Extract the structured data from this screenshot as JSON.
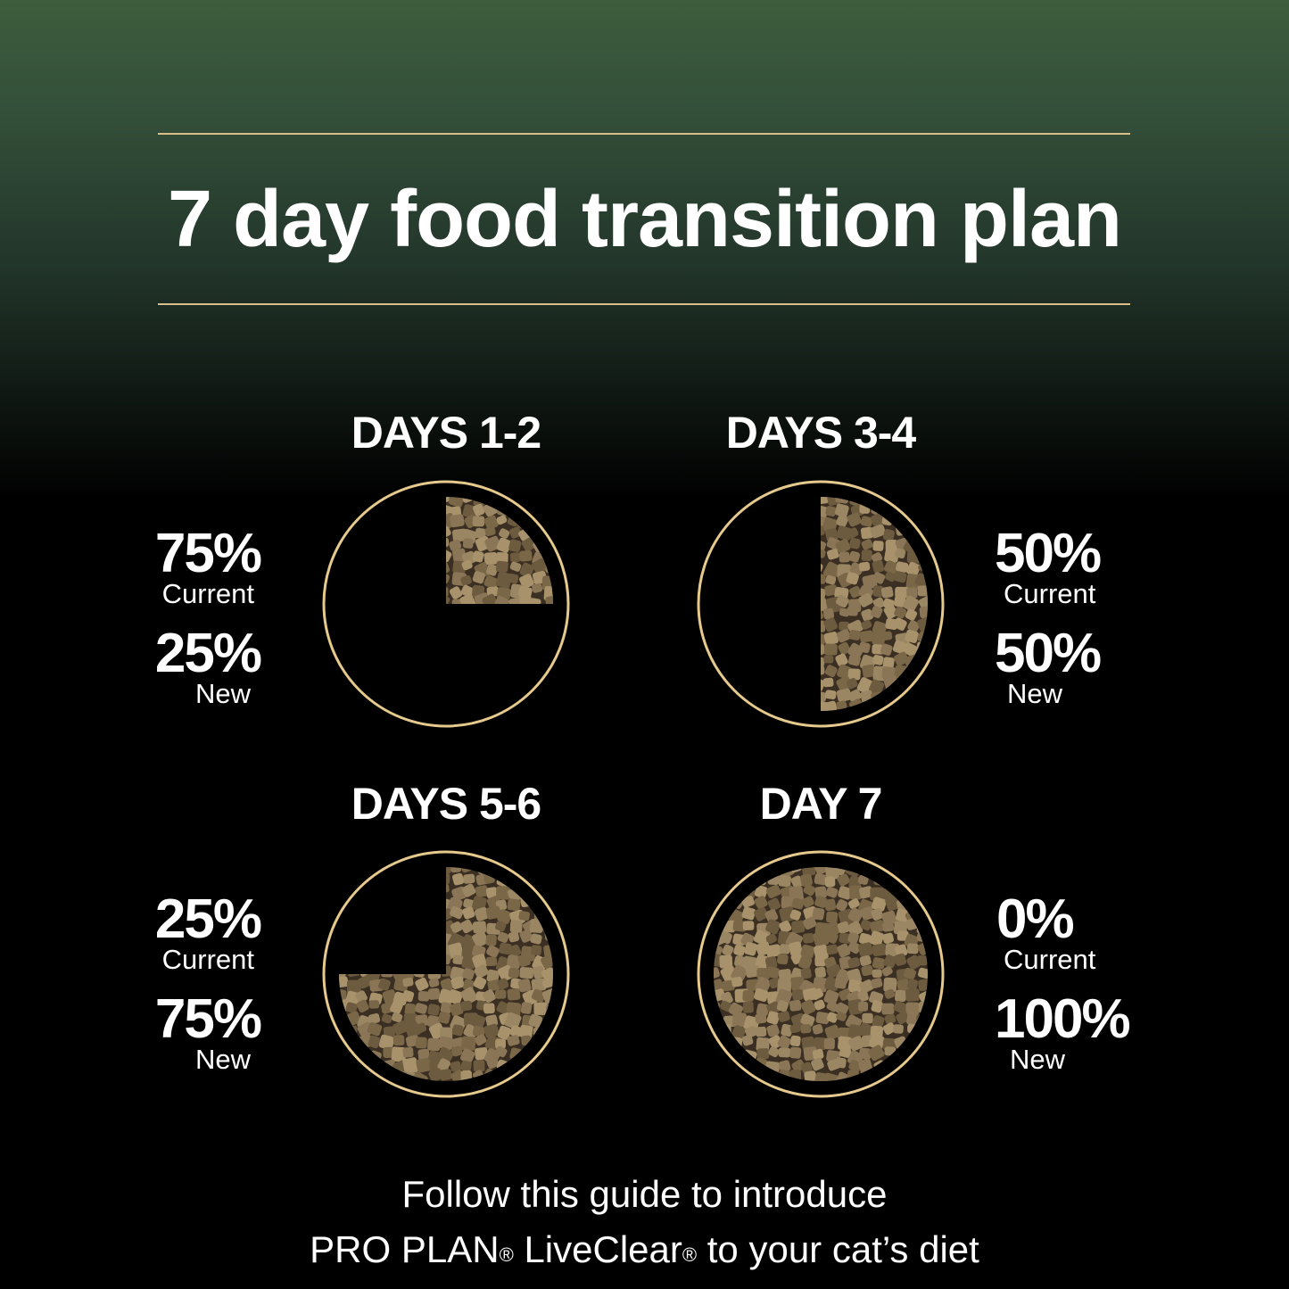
{
  "title": "7 day food transition plan",
  "colors": {
    "accent_gold": "#e6c98c",
    "kibble": "#8a7656",
    "background_top": "#3d5d3c",
    "background": "#000000"
  },
  "stages": [
    {
      "heading": "DAYS 1-2",
      "current_pct": "75%",
      "current_label": "Current",
      "new_pct": "25%",
      "new_label": "New",
      "new_fraction": 0.25,
      "labels_side": "left"
    },
    {
      "heading": "DAYS 3-4",
      "current_pct": "50%",
      "current_label": "Current",
      "new_pct": "50%",
      "new_label": "New",
      "new_fraction": 0.5,
      "labels_side": "right"
    },
    {
      "heading": "DAYS 5-6",
      "current_pct": "25%",
      "current_label": "Current",
      "new_pct": "75%",
      "new_label": "New",
      "new_fraction": 0.75,
      "labels_side": "left"
    },
    {
      "heading": "DAY 7",
      "current_pct": "0%",
      "current_label": "Current",
      "new_pct": "100%",
      "new_label": "New",
      "new_fraction": 1.0,
      "labels_side": "right"
    }
  ],
  "footer": {
    "line1": "Follow this guide to introduce",
    "line2_a": "PRO PLAN",
    "reg": "®",
    "line2_b": " LiveClear",
    "line2_c": " to your cat’s diet"
  }
}
